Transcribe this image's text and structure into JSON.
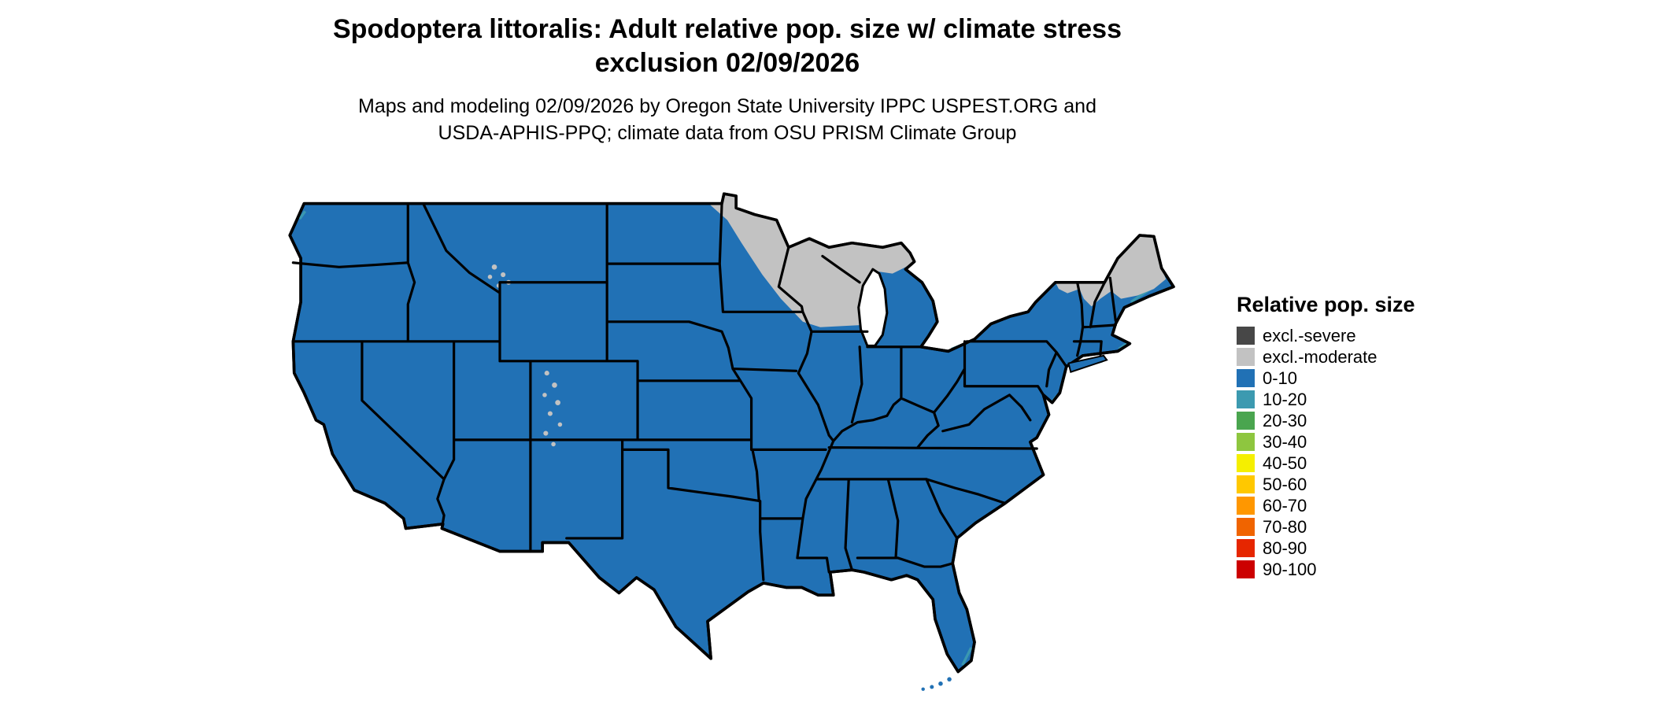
{
  "title": {
    "line1": "Spodoptera littoralis: Adult relative pop. size w/ climate stress",
    "line2": "exclusion 02/09/2026"
  },
  "subtitle": {
    "line1": "Maps and modeling 02/09/2026 by Oregon State University IPPC USPEST.ORG and",
    "line2": "USDA-APHIS-PPQ; climate data from OSU PRISM Climate Group"
  },
  "legend": {
    "title": "Relative pop. size",
    "items": [
      {
        "label": "excl.-severe",
        "color": "#474747"
      },
      {
        "label": "excl.-moderate",
        "color": "#c2c2c2"
      },
      {
        "label": "0-10",
        "color": "#2171b5"
      },
      {
        "label": "10-20",
        "color": "#3c9ab0"
      },
      {
        "label": "20-30",
        "color": "#4aa54f"
      },
      {
        "label": "30-40",
        "color": "#8ec63f"
      },
      {
        "label": "40-50",
        "color": "#f5ef00"
      },
      {
        "label": "50-60",
        "color": "#ffc800"
      },
      {
        "label": "60-70",
        "color": "#ff9700"
      },
      {
        "label": "70-80",
        "color": "#f06400"
      },
      {
        "label": "80-90",
        "color": "#e62600"
      },
      {
        "label": "90-100",
        "color": "#cc0000"
      }
    ]
  },
  "map": {
    "region": "Contiguous United States",
    "date_shown": "02/09/2026",
    "dominant_class": "0-10",
    "excluded_moderate_areas": [
      "Minnesota",
      "Wisconsin",
      "Upper Michigan",
      "northern New York (Adirondacks)",
      "northern Vermont",
      "northern New Hampshire",
      "interior Maine",
      "scattered Rocky Mountain high elevations (Colorado, Wyoming)"
    ],
    "colors": {
      "land_default": "#2171b5",
      "excluded_moderate": "#c2c2c2",
      "state_border": "#000000",
      "water_background": "#ffffff"
    }
  }
}
